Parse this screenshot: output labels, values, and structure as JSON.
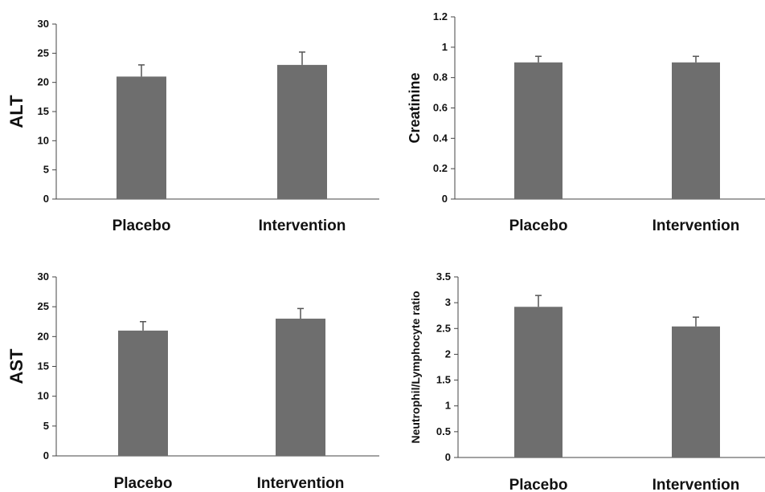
{
  "chart_data": [
    {
      "type": "bar",
      "categories": [
        "Placebo",
        "Intervention"
      ],
      "values": [
        21,
        23
      ],
      "errors": [
        2,
        2.2
      ],
      "ylabel": "ALT",
      "ylim": [
        0,
        30
      ],
      "yticks": [
        "0",
        "5",
        "10",
        "15",
        "20",
        "25",
        "30"
      ],
      "bar_color": "#6e6e6e",
      "grid": false
    },
    {
      "type": "bar",
      "categories": [
        "Placebo",
        "Intervention"
      ],
      "values": [
        0.9,
        0.9
      ],
      "errors": [
        0.04,
        0.04
      ],
      "ylabel": "Creatinine",
      "ylim": [
        0,
        1.2
      ],
      "yticks": [
        "0",
        "0.2",
        "0.4",
        "0.6",
        "0.8",
        "1",
        "1.2"
      ],
      "bar_color": "#6e6e6e",
      "grid": false
    },
    {
      "type": "bar",
      "categories": [
        "Placebo",
        "Intervention"
      ],
      "values": [
        21,
        23
      ],
      "errors": [
        1.5,
        1.7
      ],
      "ylabel": "AST",
      "ylim": [
        0,
        30
      ],
      "yticks": [
        "0",
        "5",
        "10",
        "15",
        "20",
        "25",
        "30"
      ],
      "bar_color": "#6e6e6e",
      "grid": false
    },
    {
      "type": "bar",
      "categories": [
        "Placebo",
        "Intervention"
      ],
      "values": [
        2.92,
        2.54
      ],
      "errors": [
        0.22,
        0.18
      ],
      "ylabel": "Neutrophil/Lymphocyte ratio",
      "ylim": [
        0,
        3.5
      ],
      "yticks": [
        "0",
        "0.5",
        "1",
        "1.5",
        "2",
        "2.5",
        "3",
        "3.5"
      ],
      "bar_color": "#6e6e6e",
      "grid": false
    }
  ]
}
